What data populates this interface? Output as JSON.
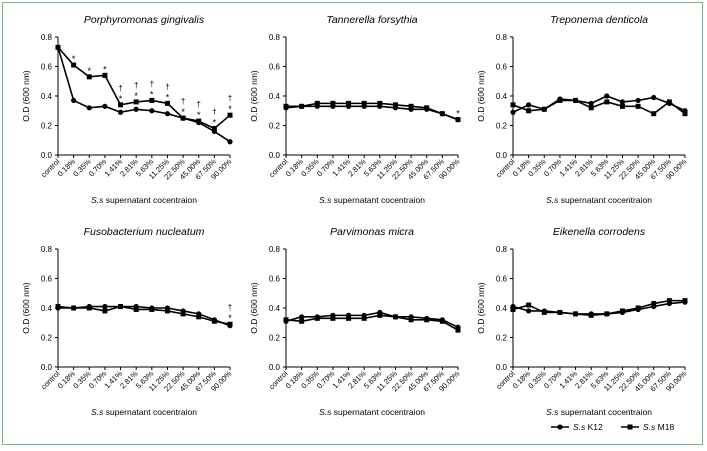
{
  "figure": {
    "legend": {
      "series": [
        {
          "prefix": "S.s",
          "name": "K12",
          "marker": "circle"
        },
        {
          "prefix": "S.s",
          "name": "M18",
          "marker": "square"
        }
      ]
    },
    "colors": {
      "frame": "#7bb383",
      "ink": "#000000"
    }
  },
  "chart_data": [
    {
      "type": "line",
      "title": "Porphyromonas gingivalis",
      "ylabel": "O.D (600 nm)",
      "xlabel": "S.s supernatant cocentraion",
      "categories": [
        "control",
        "0.18%",
        "0.35%",
        "0.70%",
        "1.41%",
        "2.81%",
        "5.63%",
        "11.25%",
        "22.50%",
        "45.00%",
        "67.50%",
        "90.00%"
      ],
      "ylim": [
        0,
        0.8
      ],
      "yticks": [
        "0.0",
        "0.2",
        "0.4",
        "0.6",
        "0.8"
      ],
      "series": [
        {
          "name": "S.s K12",
          "marker": "circle",
          "values": [
            0.73,
            0.37,
            0.32,
            0.33,
            0.29,
            0.31,
            0.3,
            0.28,
            0.25,
            0.22,
            0.16,
            0.09
          ]
        },
        {
          "name": "S.s M18",
          "marker": "square",
          "values": [
            0.73,
            0.61,
            0.53,
            0.54,
            0.34,
            0.36,
            0.37,
            0.35,
            0.25,
            0.23,
            0.18,
            0.27
          ]
        }
      ],
      "annotations": [
        {
          "index": 1,
          "text": [
            "*"
          ]
        },
        {
          "index": 2,
          "text": [
            "*"
          ]
        },
        {
          "index": 3,
          "text": [
            "*"
          ]
        },
        {
          "index": 4,
          "text": [
            "†",
            "*"
          ]
        },
        {
          "index": 5,
          "text": [
            "†",
            "*"
          ]
        },
        {
          "index": 6,
          "text": [
            "†",
            "*"
          ]
        },
        {
          "index": 7,
          "text": [
            "†",
            "*"
          ]
        },
        {
          "index": 8,
          "text": [
            "†",
            "*"
          ]
        },
        {
          "index": 9,
          "text": [
            "†",
            "*"
          ]
        },
        {
          "index": 10,
          "text": [
            "†",
            "*"
          ]
        },
        {
          "index": 11,
          "text": [
            "†",
            "*"
          ]
        }
      ]
    },
    {
      "type": "line",
      "title": "Tannerella forsythia",
      "ylabel": "O.D (600 nm)",
      "xlabel": "S.s supernatant cocentraion",
      "categories": [
        "control",
        "0.18%",
        "0.35%",
        "0.70%",
        "1.41%",
        "2.81%",
        "5.63%",
        "11.25%",
        "22.50%",
        "45.00%",
        "67.50%",
        "90.00%"
      ],
      "ylim": [
        0,
        0.8
      ],
      "yticks": [
        "0.0",
        "0.2",
        "0.4",
        "0.6",
        "0.8"
      ],
      "series": [
        {
          "name": "S.s K12",
          "marker": "circle",
          "values": [
            0.32,
            0.33,
            0.33,
            0.33,
            0.33,
            0.33,
            0.33,
            0.32,
            0.31,
            0.31,
            0.28,
            0.24
          ]
        },
        {
          "name": "S.s M18",
          "marker": "square",
          "values": [
            0.33,
            0.33,
            0.35,
            0.35,
            0.35,
            0.35,
            0.35,
            0.34,
            0.33,
            0.32,
            0.28,
            0.24
          ]
        }
      ],
      "annotations": [
        {
          "index": 11,
          "text": [
            "*"
          ]
        }
      ]
    },
    {
      "type": "line",
      "title": "Treponema denticola",
      "ylabel": "O.D (600 nm)",
      "xlabel": "S.s supernatant cocentraion",
      "categories": [
        "control",
        "0.18%",
        "0.35%",
        "0.70%",
        "1.41%",
        "2.81%",
        "5.63%",
        "11.25%",
        "22.50%",
        "45.00%",
        "67.50%",
        "90.00%"
      ],
      "ylim": [
        0,
        0.8
      ],
      "yticks": [
        "0.0",
        "0.2",
        "0.4",
        "0.6",
        "0.8"
      ],
      "series": [
        {
          "name": "S.s K12",
          "marker": "circle",
          "values": [
            0.29,
            0.34,
            0.31,
            0.38,
            0.37,
            0.35,
            0.4,
            0.36,
            0.37,
            0.39,
            0.35,
            0.3
          ]
        },
        {
          "name": "S.s M18",
          "marker": "square",
          "values": [
            0.34,
            0.3,
            0.31,
            0.37,
            0.37,
            0.32,
            0.36,
            0.33,
            0.33,
            0.28,
            0.36,
            0.28
          ]
        }
      ],
      "annotations": []
    },
    {
      "type": "line",
      "title": "Fusobacterium nucleatum",
      "ylabel": "O.D (600 nm)",
      "xlabel": "S.s supernatant cocentraion",
      "categories": [
        "control",
        "0.18%",
        "0.35%",
        "0.70%",
        "1.41%",
        "2.81%",
        "5.63%",
        "11.25%",
        "22.50%",
        "45.00%",
        "67.50%",
        "90.00%"
      ],
      "ylim": [
        0,
        0.8
      ],
      "yticks": [
        "0.0",
        "0.2",
        "0.4",
        "0.6",
        "0.8"
      ],
      "series": [
        {
          "name": "S.s K12",
          "marker": "circle",
          "values": [
            0.4,
            0.4,
            0.41,
            0.41,
            0.41,
            0.41,
            0.4,
            0.4,
            0.38,
            0.36,
            0.32,
            0.28
          ]
        },
        {
          "name": "S.s M18",
          "marker": "square",
          "values": [
            0.41,
            0.4,
            0.4,
            0.38,
            0.41,
            0.39,
            0.39,
            0.38,
            0.36,
            0.34,
            0.31,
            0.29
          ]
        }
      ],
      "annotations": [
        {
          "index": 11,
          "text": [
            "†",
            "*"
          ]
        }
      ]
    },
    {
      "type": "line",
      "title": "Parvimonas micra",
      "ylabel": "O.D (600 nm)",
      "xlabel": "S.s supernatant cocentraion",
      "categories": [
        "control",
        "0.18%",
        "0.35%",
        "0.70%",
        "1.41%",
        "2.81%",
        "5.63%",
        "11.25%",
        "22.50%",
        "45.00%",
        "67.50%",
        "90.00%"
      ],
      "ylim": [
        0,
        0.8
      ],
      "yticks": [
        "0.0",
        "0.2",
        "0.4",
        "0.6",
        "0.8"
      ],
      "series": [
        {
          "name": "S.s K12",
          "marker": "circle",
          "values": [
            0.31,
            0.34,
            0.34,
            0.35,
            0.35,
            0.35,
            0.37,
            0.34,
            0.34,
            0.33,
            0.32,
            0.27
          ]
        },
        {
          "name": "S.s M18",
          "marker": "square",
          "values": [
            0.32,
            0.31,
            0.33,
            0.33,
            0.33,
            0.33,
            0.35,
            0.34,
            0.32,
            0.32,
            0.31,
            0.25
          ]
        }
      ],
      "annotations": []
    },
    {
      "type": "line",
      "title": "Eikenella corrodens",
      "ylabel": "O.D (600 nm)",
      "xlabel": "S.s supernatant cocentraion",
      "categories": [
        "control",
        "0.18%",
        "0.35%",
        "0.70%",
        "1.41%",
        "2.81%",
        "5.63%",
        "11.25%",
        "22.50%",
        "45.00%",
        "67.50%",
        "90.00%"
      ],
      "ylim": [
        0,
        0.8
      ],
      "yticks": [
        "0.0",
        "0.2",
        "0.4",
        "0.6",
        "0.8"
      ],
      "series": [
        {
          "name": "S.s K12",
          "marker": "circle",
          "values": [
            0.41,
            0.38,
            0.38,
            0.37,
            0.36,
            0.36,
            0.36,
            0.37,
            0.39,
            0.41,
            0.43,
            0.44
          ]
        },
        {
          "name": "S.s M18",
          "marker": "square",
          "values": [
            0.39,
            0.42,
            0.37,
            0.37,
            0.36,
            0.35,
            0.36,
            0.38,
            0.4,
            0.43,
            0.45,
            0.45
          ]
        }
      ],
      "annotations": []
    }
  ]
}
